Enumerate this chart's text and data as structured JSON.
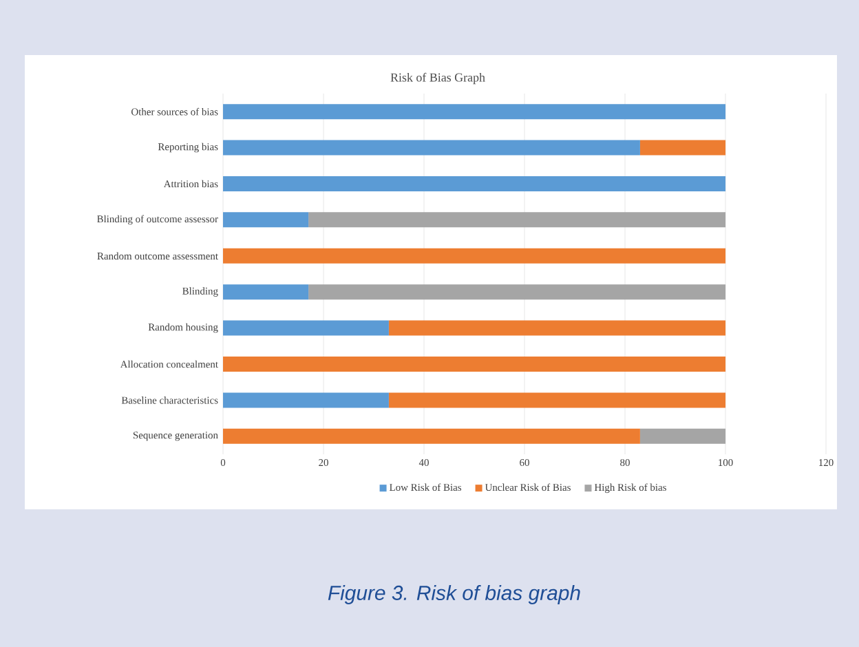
{
  "chart_data": {
    "type": "bar",
    "orientation": "horizontal",
    "stacked": true,
    "title": "Risk of Bias Graph",
    "categories": [
      "Other sources of bias",
      "Reporting bias",
      "Attrition bias",
      "Blinding of outcome assessor",
      "Random outcome assessment",
      "Blinding",
      "Random housing",
      "Allocation concealment",
      "Baseline characteristics",
      "Sequence generation"
    ],
    "series": [
      {
        "name": "Low Risk of Bias",
        "color": "#5b9bd5",
        "values": [
          100,
          83,
          100,
          17,
          0,
          17,
          33,
          0,
          33,
          0
        ]
      },
      {
        "name": "Unclear Risk of Bias",
        "color": "#ed7d31",
        "values": [
          0,
          17,
          0,
          0,
          100,
          0,
          67,
          100,
          67,
          83
        ]
      },
      {
        "name": "High Risk of bias",
        "color": "#a5a5a5",
        "values": [
          0,
          0,
          0,
          83,
          0,
          83,
          0,
          0,
          0,
          17
        ]
      }
    ],
    "xlim": [
      0,
      120
    ],
    "xticks": [
      0,
      20,
      40,
      60,
      80,
      100,
      120
    ],
    "grid": "x",
    "legend": "bottom",
    "annotations": [
      "Figure 3. Risk of bias graph"
    ]
  }
}
